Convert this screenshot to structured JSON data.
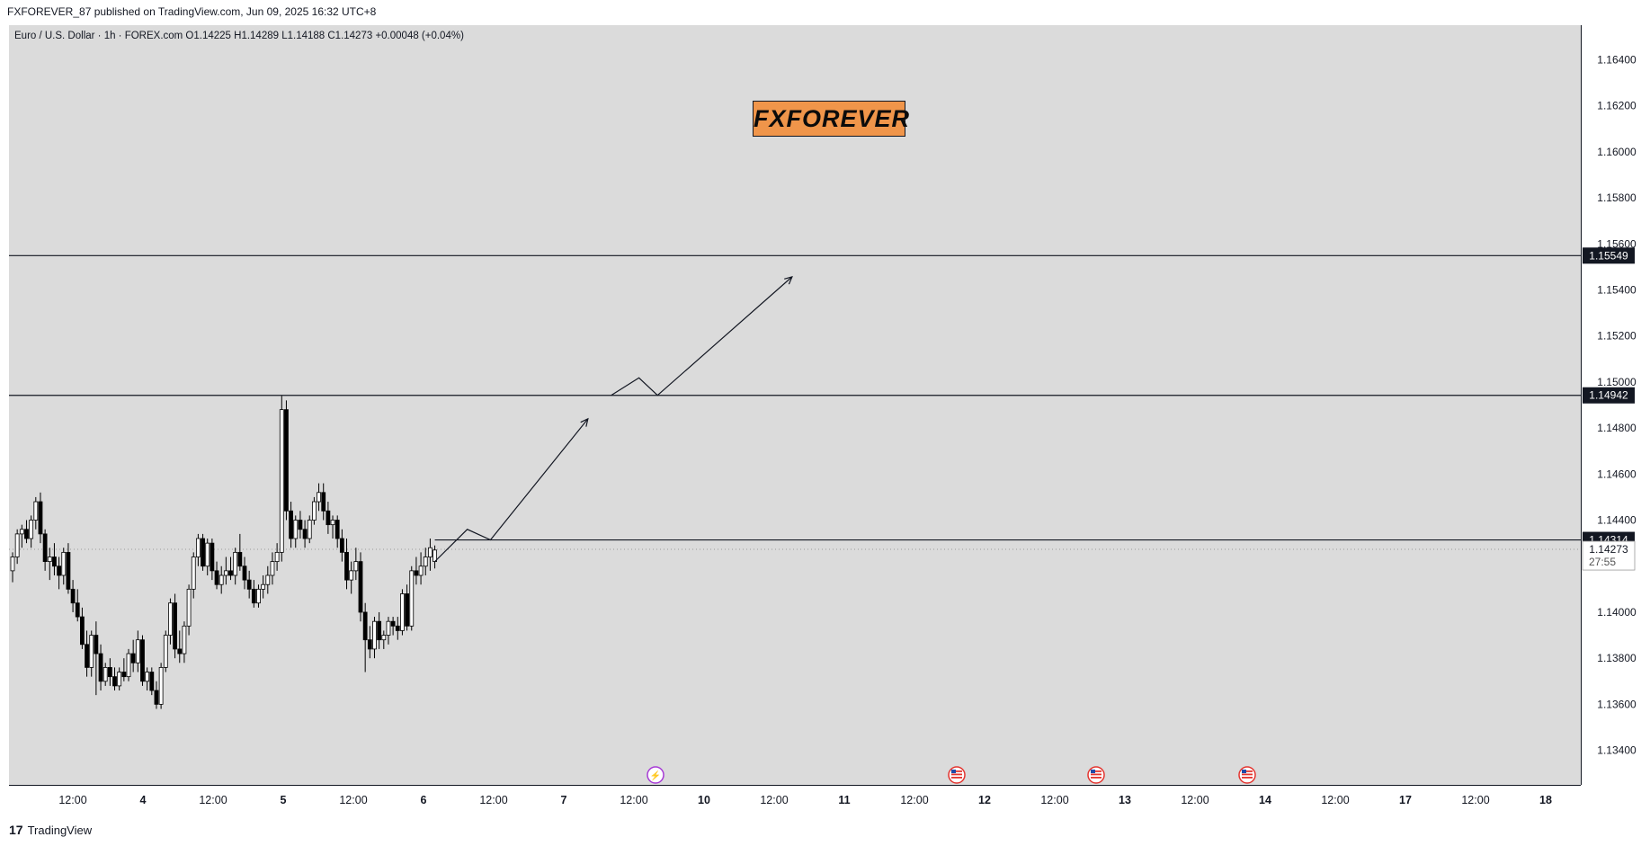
{
  "header": {
    "publish_text": "FXFOREVER_87 published on TradingView.com, Jun 09, 2025 16:32 UTC+8"
  },
  "symbol_line": "Euro / U.S. Dollar · 1h · FOREX.com   O1.14225   H1.14289   L1.14188   C1.14273   +0.00048 (+0.04%)",
  "brand_label": "FXFOREVER",
  "footer": {
    "logo_glyph": "17",
    "brand": "TradingView"
  },
  "colors": {
    "chart_bg": "#dbdbdb",
    "candle_up": "#ffffff",
    "candle_down": "#000000",
    "brand_box": "#f0954a",
    "level_label_bg": "#131722"
  },
  "icons": [
    "flash-event-icon",
    "us-flag-event-icon",
    "us-flag-event-icon",
    "us-flag-event-icon"
  ],
  "chart_data": {
    "type": "candlestick",
    "title": "",
    "y_ticks": [
      "1.16400",
      "1.16200",
      "1.16000",
      "1.15800",
      "1.15600",
      "1.15400",
      "1.15200",
      "1.15000",
      "1.14800",
      "1.14600",
      "1.14400",
      "1.14000",
      "1.13800",
      "1.13600",
      "1.13400"
    ],
    "ylim": [
      1.1325,
      1.1655
    ],
    "x_ticks": [
      "12:00",
      "4",
      "12:00",
      "5",
      "12:00",
      "6",
      "12:00",
      "7",
      "12:00",
      "10",
      "12:00",
      "11",
      "12:00",
      "12",
      "12:00",
      "13",
      "12:00",
      "14",
      "12:00",
      "17",
      "12:00",
      "18"
    ],
    "horizontal_levels": [
      {
        "value": 1.15549,
        "label": "1.15549"
      },
      {
        "value": 1.14942,
        "label": "1.14942"
      },
      {
        "value": 1.14314,
        "label": "1.14314"
      }
    ],
    "current_price": {
      "value": 1.14273,
      "label": "1.14273",
      "countdown": "27:55"
    },
    "candles": [
      [
        1.1418,
        1.1426,
        1.1413,
        1.1424
      ],
      [
        1.1424,
        1.1436,
        1.1421,
        1.1434
      ],
      [
        1.1434,
        1.1438,
        1.1428,
        1.1436
      ],
      [
        1.1436,
        1.144,
        1.143,
        1.1432
      ],
      [
        1.1432,
        1.1442,
        1.1428,
        1.144
      ],
      [
        1.144,
        1.145,
        1.1436,
        1.1448
      ],
      [
        1.1448,
        1.1452,
        1.143,
        1.1434
      ],
      [
        1.1434,
        1.1436,
        1.1418,
        1.1422
      ],
      [
        1.1422,
        1.1428,
        1.1414,
        1.1424
      ],
      [
        1.1424,
        1.143,
        1.1416,
        1.142
      ],
      [
        1.142,
        1.1424,
        1.141,
        1.1416
      ],
      [
        1.1416,
        1.1428,
        1.1412,
        1.1426
      ],
      [
        1.1426,
        1.143,
        1.1408,
        1.141
      ],
      [
        1.141,
        1.1414,
        1.14,
        1.1404
      ],
      [
        1.1404,
        1.141,
        1.1396,
        1.1398
      ],
      [
        1.1398,
        1.1402,
        1.1384,
        1.1386
      ],
      [
        1.1386,
        1.1392,
        1.1372,
        1.1376
      ],
      [
        1.1376,
        1.1392,
        1.1372,
        1.139
      ],
      [
        1.139,
        1.1396,
        1.1364,
        1.1382
      ],
      [
        1.1382,
        1.1386,
        1.1366,
        1.137
      ],
      [
        1.137,
        1.1378,
        1.1368,
        1.1376
      ],
      [
        1.1376,
        1.138,
        1.1368,
        1.1372
      ],
      [
        1.1372,
        1.1376,
        1.1366,
        1.1368
      ],
      [
        1.1368,
        1.1376,
        1.1366,
        1.1374
      ],
      [
        1.1374,
        1.138,
        1.137,
        1.1372
      ],
      [
        1.1372,
        1.1384,
        1.137,
        1.1382
      ],
      [
        1.1382,
        1.1388,
        1.1374,
        1.1378
      ],
      [
        1.1378,
        1.1392,
        1.1374,
        1.1388
      ],
      [
        1.1388,
        1.139,
        1.1368,
        1.137
      ],
      [
        1.137,
        1.1376,
        1.1366,
        1.1374
      ],
      [
        1.1374,
        1.1376,
        1.1364,
        1.1366
      ],
      [
        1.1366,
        1.137,
        1.1358,
        1.136
      ],
      [
        1.136,
        1.1378,
        1.1358,
        1.1376
      ],
      [
        1.1376,
        1.1392,
        1.1374,
        1.139
      ],
      [
        1.139,
        1.1406,
        1.1386,
        1.1404
      ],
      [
        1.1404,
        1.1408,
        1.138,
        1.1384
      ],
      [
        1.1384,
        1.1392,
        1.1378,
        1.1382
      ],
      [
        1.1382,
        1.1396,
        1.1378,
        1.1394
      ],
      [
        1.1394,
        1.1412,
        1.139,
        1.141
      ],
      [
        1.141,
        1.1426,
        1.1406,
        1.1424
      ],
      [
        1.1424,
        1.1434,
        1.142,
        1.1432
      ],
      [
        1.1432,
        1.1434,
        1.1418,
        1.142
      ],
      [
        1.142,
        1.1432,
        1.1416,
        1.143
      ],
      [
        1.143,
        1.1432,
        1.1414,
        1.1418
      ],
      [
        1.1418,
        1.1422,
        1.141,
        1.1412
      ],
      [
        1.1412,
        1.142,
        1.1408,
        1.1416
      ],
      [
        1.1416,
        1.1424,
        1.1412,
        1.1418
      ],
      [
        1.1418,
        1.1424,
        1.1414,
        1.1416
      ],
      [
        1.1416,
        1.1428,
        1.1412,
        1.1426
      ],
      [
        1.1426,
        1.1434,
        1.1418,
        1.142
      ],
      [
        1.142,
        1.1424,
        1.141,
        1.1414
      ],
      [
        1.1414,
        1.1418,
        1.1406,
        1.141
      ],
      [
        1.141,
        1.1414,
        1.1402,
        1.1404
      ],
      [
        1.1404,
        1.1412,
        1.1402,
        1.141
      ],
      [
        1.141,
        1.1416,
        1.1406,
        1.1412
      ],
      [
        1.1412,
        1.142,
        1.1408,
        1.1416
      ],
      [
        1.1416,
        1.1426,
        1.1412,
        1.1422
      ],
      [
        1.1422,
        1.143,
        1.1418,
        1.1426
      ],
      [
        1.1426,
        1.1494,
        1.1422,
        1.1488
      ],
      [
        1.1488,
        1.1492,
        1.144,
        1.1444
      ],
      [
        1.1444,
        1.1448,
        1.1428,
        1.1432
      ],
      [
        1.1432,
        1.1442,
        1.1428,
        1.144
      ],
      [
        1.144,
        1.1444,
        1.1432,
        1.1436
      ],
      [
        1.1436,
        1.144,
        1.1428,
        1.1432
      ],
      [
        1.1432,
        1.1442,
        1.143,
        1.144
      ],
      [
        1.144,
        1.145,
        1.1438,
        1.1448
      ],
      [
        1.1448,
        1.1456,
        1.1444,
        1.1452
      ],
      [
        1.1452,
        1.1456,
        1.144,
        1.1444
      ],
      [
        1.1444,
        1.1448,
        1.1434,
        1.1438
      ],
      [
        1.1438,
        1.1442,
        1.1432,
        1.144
      ],
      [
        1.144,
        1.1442,
        1.1428,
        1.1432
      ],
      [
        1.1432,
        1.1436,
        1.1422,
        1.1426
      ],
      [
        1.1426,
        1.1432,
        1.141,
        1.1414
      ],
      [
        1.1414,
        1.1422,
        1.1408,
        1.1418
      ],
      [
        1.1418,
        1.1428,
        1.1414,
        1.1422
      ],
      [
        1.1422,
        1.1426,
        1.1396,
        1.14
      ],
      [
        1.14,
        1.1404,
        1.1374,
        1.1388
      ],
      [
        1.1388,
        1.1394,
        1.138,
        1.1384
      ],
      [
        1.1384,
        1.1398,
        1.138,
        1.1396
      ],
      [
        1.1396,
        1.14,
        1.1384,
        1.1388
      ],
      [
        1.1388,
        1.1392,
        1.1384,
        1.139
      ],
      [
        1.139,
        1.1398,
        1.1386,
        1.1396
      ],
      [
        1.1396,
        1.1398,
        1.139,
        1.1394
      ],
      [
        1.1394,
        1.1398,
        1.1388,
        1.1392
      ],
      [
        1.1392,
        1.141,
        1.139,
        1.1408
      ],
      [
        1.1408,
        1.1412,
        1.1392,
        1.1394
      ],
      [
        1.1394,
        1.142,
        1.1392,
        1.1418
      ],
      [
        1.1418,
        1.1424,
        1.1412,
        1.1416
      ],
      [
        1.1416,
        1.1426,
        1.1412,
        1.142
      ],
      [
        1.142,
        1.1428,
        1.1416,
        1.1424
      ],
      [
        1.1424,
        1.1432,
        1.1418,
        1.1428
      ],
      [
        1.1422,
        1.1429,
        1.1419,
        1.1427
      ]
    ],
    "projection_path": [
      [
        1.1422,
        0
      ],
      [
        1.1436,
        7
      ],
      [
        1.14314,
        12
      ],
      [
        1.1484,
        33
      ],
      [
        1.14942,
        38
      ],
      [
        1.15018,
        44
      ],
      [
        1.14942,
        48
      ],
      [
        1.15457,
        77
      ]
    ]
  }
}
